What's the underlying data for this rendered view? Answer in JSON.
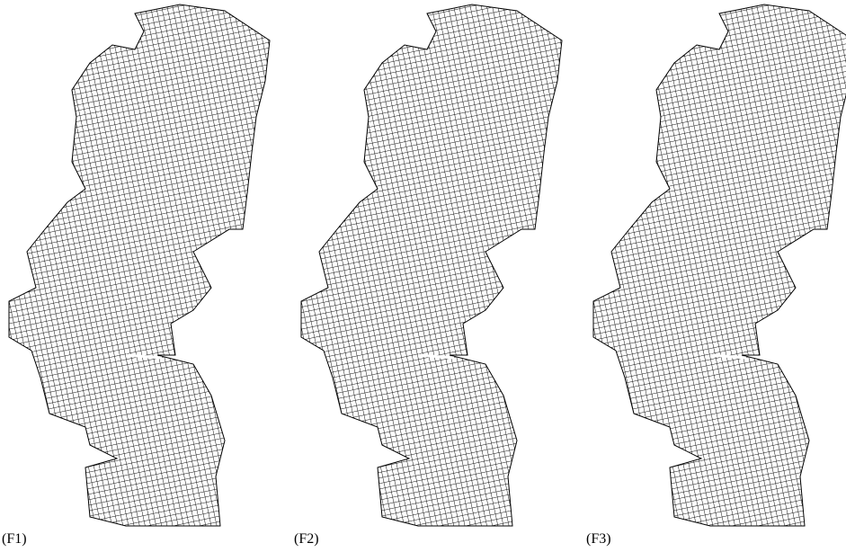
{
  "panels": [
    {
      "label": "(F1)"
    },
    {
      "label": "(F2)"
    },
    {
      "label": "(F3)"
    }
  ]
}
